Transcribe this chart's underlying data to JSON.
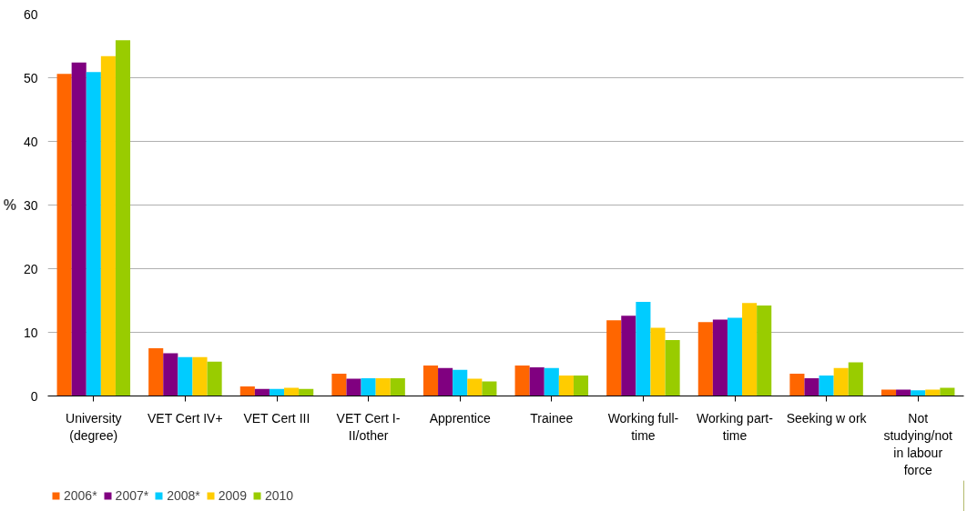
{
  "chart_data": {
    "type": "bar",
    "ylabel": "%",
    "categories": [
      "University (degree)",
      "VET Cert IV+",
      "VET Cert III",
      "VET Cert I-II/other",
      "Apprentice",
      "Trainee",
      "Working full-time",
      "Working part-time",
      "Seeking w ork",
      "Not studying/not in labour force"
    ],
    "series": [
      {
        "name": "2006*",
        "color": "#ff6600",
        "values": [
          50.6,
          7.5,
          1.5,
          3.5,
          4.8,
          4.8,
          11.9,
          11.6,
          3.5,
          1.0
        ]
      },
      {
        "name": "2007*",
        "color": "#800080",
        "values": [
          52.4,
          6.7,
          1.1,
          2.7,
          4.4,
          4.5,
          12.6,
          12.0,
          2.8,
          1.0
        ]
      },
      {
        "name": "2008*",
        "color": "#00ccff",
        "values": [
          50.9,
          6.1,
          1.1,
          2.8,
          4.1,
          4.4,
          14.8,
          12.3,
          3.2,
          0.9
        ]
      },
      {
        "name": "2009",
        "color": "#ffcc00",
        "values": [
          53.4,
          6.1,
          1.3,
          2.8,
          2.7,
          3.2,
          10.7,
          14.6,
          4.4,
          1.0
        ]
      },
      {
        "name": "2010",
        "color": "#99cc00",
        "values": [
          55.9,
          5.4,
          1.1,
          2.8,
          2.3,
          3.2,
          8.8,
          14.2,
          5.3,
          1.3
        ]
      }
    ],
    "ylim": [
      0,
      60
    ],
    "yticks": [
      0,
      10,
      20,
      30,
      40,
      50,
      60
    ],
    "grid": "y",
    "legend": "bottom left"
  }
}
